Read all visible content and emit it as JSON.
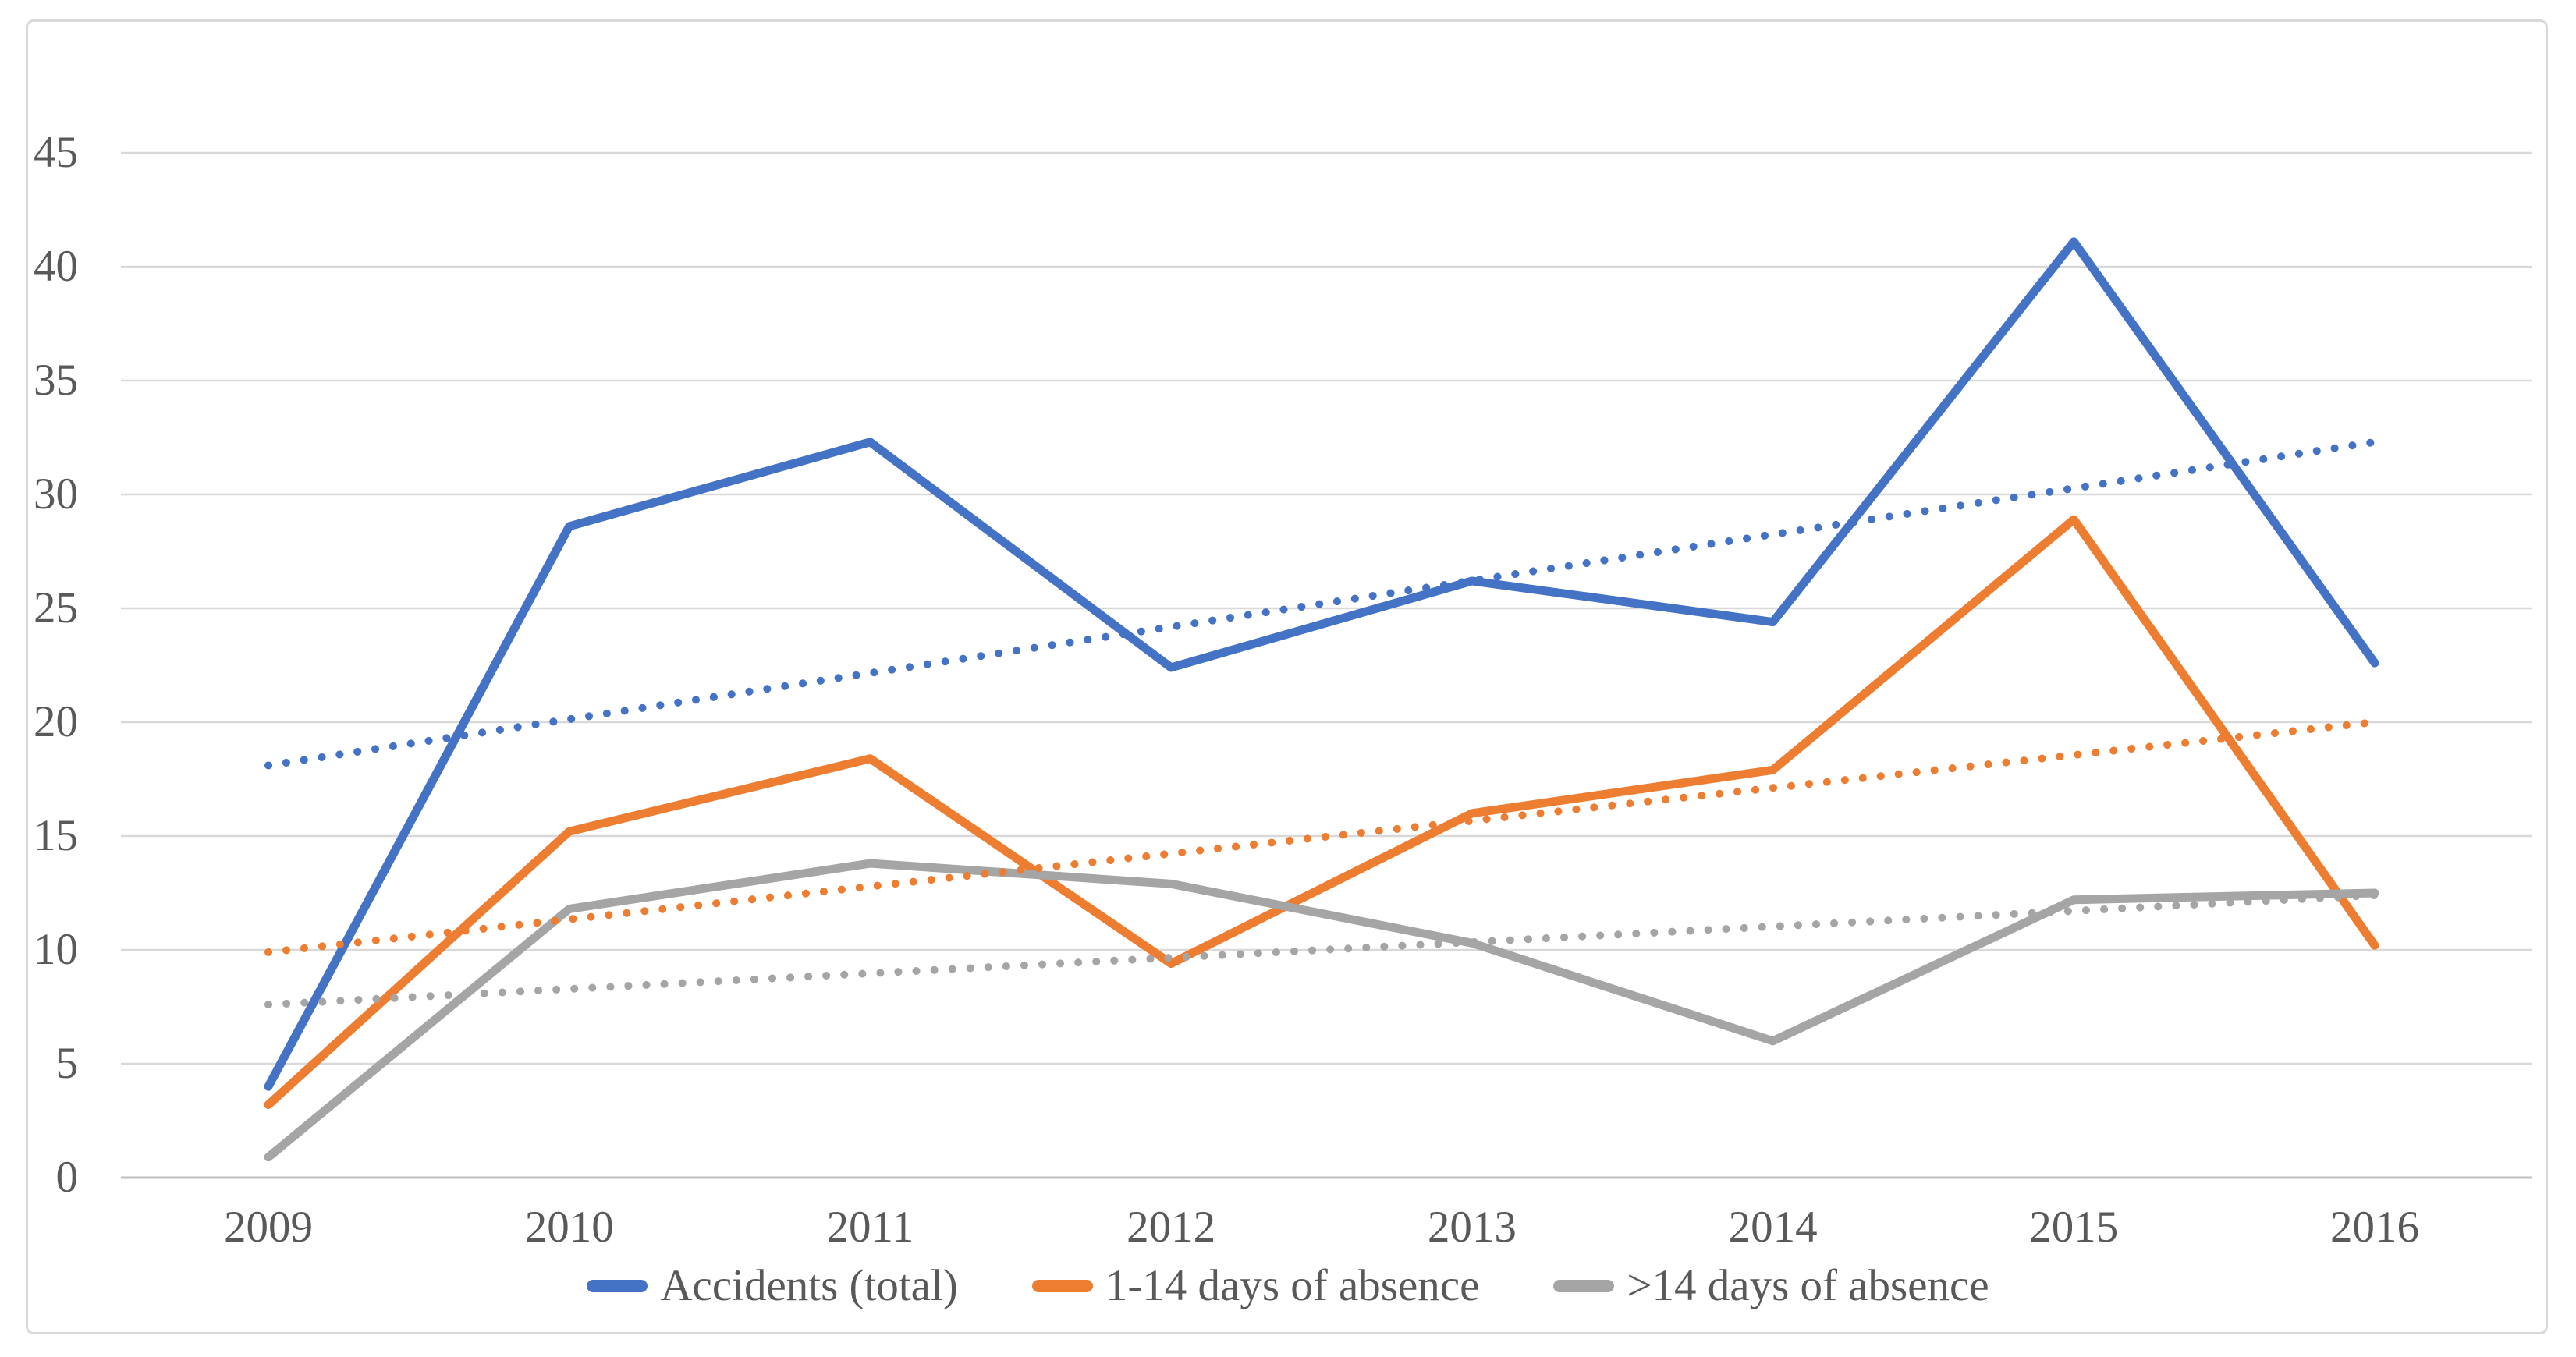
{
  "chart_data": {
    "type": "line",
    "title": "",
    "xlabel": "",
    "ylabel": "",
    "x": [
      "2009",
      "2010",
      "2011",
      "2012",
      "2013",
      "2014",
      "2015",
      "2016"
    ],
    "y_ticks": [
      "0",
      "5",
      "10",
      "15",
      "20",
      "25",
      "30",
      "35",
      "40",
      "45"
    ],
    "ylim": [
      0,
      45
    ],
    "y_step": 5,
    "grid": "horizontal",
    "legend_position": "bottom",
    "series": [
      {
        "name": "Accidents (total)",
        "color": "#4472C4",
        "line_style": "solid",
        "values": [
          4.0,
          28.6,
          32.3,
          22.4,
          26.2,
          24.4,
          41.1,
          22.6
        ]
      },
      {
        "name": "1-14 days of absence",
        "color": "#ED7D31",
        "line_style": "solid",
        "values": [
          3.2,
          15.2,
          18.4,
          9.4,
          16.0,
          17.9,
          28.9,
          10.2
        ]
      },
      {
        "name": ">14 days of absence",
        "color": "#A5A5A5",
        "line_style": "solid",
        "values": [
          0.9,
          11.8,
          13.8,
          12.9,
          10.3,
          6.0,
          12.2,
          12.5
        ]
      }
    ],
    "trendlines": [
      {
        "for_series": "Accidents (total)",
        "color": "#4472C4",
        "line_style": "dotted",
        "start_value": 18.1,
        "end_value": 32.3
      },
      {
        "for_series": "1-14 days of absence",
        "color": "#ED7D31",
        "line_style": "dotted",
        "start_value": 9.9,
        "end_value": 20.0
      },
      {
        "for_series": ">14 days of absence",
        "color": "#A5A5A5",
        "line_style": "dotted",
        "start_value": 7.6,
        "end_value": 12.4
      }
    ],
    "colors": {
      "gridline": "#D9D9D9",
      "axis_line": "#BFBFBF",
      "text": "#595959",
      "border": "#D9D9D9",
      "background": "#FFFFFF"
    }
  }
}
